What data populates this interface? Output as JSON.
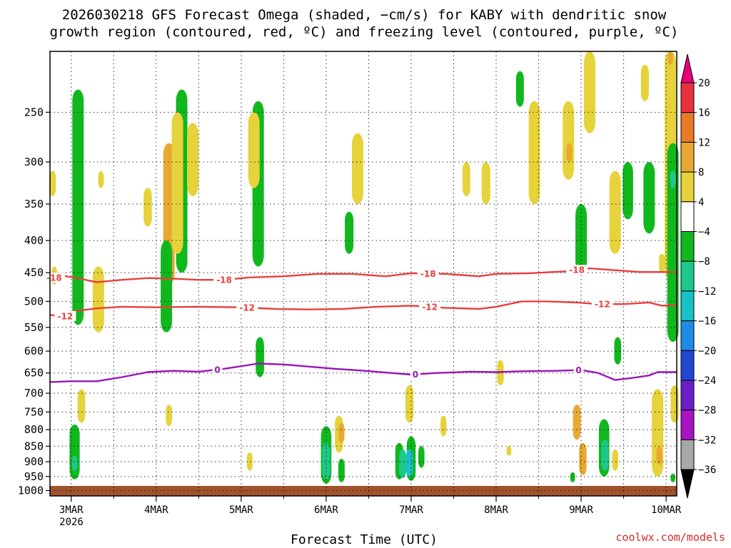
{
  "chart_data": {
    "type": "heatmap",
    "title_lines": [
      "2026030218 GFS Forecast Omega (shaded, −cm/s) for KABY with dendritic snow",
      "growth region (contoured, red, ºC) and freezing level (contoured, purple, ºC)"
    ],
    "xlabel": "Forecast Time (UTC)",
    "credit": "coolwx.com/models",
    "x_ticks": [
      "3MAR",
      "4MAR",
      "5MAR",
      "6MAR",
      "7MAR",
      "8MAR",
      "9MAR",
      "10MAR"
    ],
    "x_year_label": "2026",
    "x_range_days": [
      2.75,
      10.125
    ],
    "y_ticks": [
      250,
      300,
      350,
      400,
      450,
      500,
      550,
      600,
      650,
      700,
      750,
      800,
      850,
      900,
      950,
      1000
    ],
    "y_range_hpa": [
      200,
      1020
    ],
    "colorbar": {
      "labels": [
        "20",
        "16",
        "12",
        "8",
        "4",
        "−4",
        "−8",
        "−12",
        "−16",
        "−20",
        "−24",
        "−28",
        "−32",
        "−36"
      ],
      "colors": [
        "#e8007a",
        "#e8323c",
        "#e87a28",
        "#e8a832",
        "#e6d23a",
        "#ffffff",
        "#10b81e",
        "#1ec88a",
        "#18c0c8",
        "#1e8ce6",
        "#2046d2",
        "#6a1ec8",
        "#a614c4",
        "#a8a8a8",
        "#000000"
      ]
    },
    "contours": {
      "minus18": {
        "label": "-18",
        "color": "#e8403c",
        "label_days": [
          2.8,
          4.8,
          7.2,
          8.95
        ],
        "points": [
          [
            2.75,
            460
          ],
          [
            2.9,
            455
          ],
          [
            3.1,
            460
          ],
          [
            3.3,
            466
          ],
          [
            3.6,
            462
          ],
          [
            3.9,
            459
          ],
          [
            4.2,
            460
          ],
          [
            4.5,
            462
          ],
          [
            4.8,
            462
          ],
          [
            5.1,
            458
          ],
          [
            5.5,
            456
          ],
          [
            5.9,
            452
          ],
          [
            6.3,
            452
          ],
          [
            6.7,
            456
          ],
          [
            7.0,
            451
          ],
          [
            7.4,
            452
          ],
          [
            7.8,
            456
          ],
          [
            8.0,
            452
          ],
          [
            8.4,
            451
          ],
          [
            8.8,
            448
          ],
          [
            9.1,
            443
          ],
          [
            9.4,
            446
          ],
          [
            9.7,
            449
          ],
          [
            10.125,
            449
          ]
        ]
      },
      "minus12": {
        "label": "-12",
        "color": "#e8403c",
        "label_days": [
          2.93,
          5.07,
          7.22,
          9.25
        ],
        "points": [
          [
            2.75,
            525
          ],
          [
            2.9,
            530
          ],
          [
            3.05,
            518
          ],
          [
            3.3,
            513
          ],
          [
            3.6,
            510
          ],
          [
            4.0,
            511
          ],
          [
            4.5,
            510
          ],
          [
            5.0,
            511
          ],
          [
            5.4,
            514
          ],
          [
            5.8,
            515
          ],
          [
            6.2,
            514
          ],
          [
            6.6,
            510
          ],
          [
            7.0,
            508
          ],
          [
            7.4,
            512
          ],
          [
            7.8,
            514
          ],
          [
            8.0,
            510
          ],
          [
            8.3,
            500
          ],
          [
            8.6,
            500
          ],
          [
            8.95,
            502
          ],
          [
            9.2,
            505
          ],
          [
            9.5,
            505
          ],
          [
            9.8,
            502
          ],
          [
            9.95,
            508
          ],
          [
            10.05,
            507
          ],
          [
            10.125,
            508
          ]
        ]
      },
      "freezing": {
        "label": "0",
        "color": "#9a14b8",
        "label_days": [
          4.72,
          7.05,
          8.97
        ],
        "points": [
          [
            2.75,
            672
          ],
          [
            3.0,
            670
          ],
          [
            3.3,
            670
          ],
          [
            3.6,
            660
          ],
          [
            3.9,
            648
          ],
          [
            4.2,
            645
          ],
          [
            4.5,
            647
          ],
          [
            4.8,
            640
          ],
          [
            5.0,
            634
          ],
          [
            5.2,
            628
          ],
          [
            5.5,
            630
          ],
          [
            5.8,
            635
          ],
          [
            6.1,
            640
          ],
          [
            6.4,
            644
          ],
          [
            6.7,
            649
          ],
          [
            7.0,
            654
          ],
          [
            7.3,
            650
          ],
          [
            7.7,
            647
          ],
          [
            8.0,
            648
          ],
          [
            8.3,
            646
          ],
          [
            8.7,
            645
          ],
          [
            9.0,
            643
          ],
          [
            9.2,
            650
          ],
          [
            9.4,
            667
          ],
          [
            9.6,
            662
          ],
          [
            9.8,
            656
          ],
          [
            9.9,
            648
          ],
          [
            10.125,
            648
          ]
        ]
      }
    },
    "omega_features": [
      {
        "day": 2.78,
        "p1": 310,
        "p2": 340,
        "color": "#e6d23a"
      },
      {
        "day": 2.8,
        "p1": 440,
        "p2": 470,
        "color": "#e6d23a"
      },
      {
        "day": 3.08,
        "p1": 230,
        "p2": 545,
        "color": "#10b81e"
      },
      {
        "day": 3.04,
        "p1": 785,
        "p2": 960,
        "color": "#10b81e"
      },
      {
        "day": 3.04,
        "p1": 880,
        "p2": 930,
        "color": "#1ec88a"
      },
      {
        "day": 3.32,
        "p1": 440,
        "p2": 560,
        "color": "#e6d23a"
      },
      {
        "day": 3.12,
        "p1": 690,
        "p2": 780,
        "color": "#e6d23a"
      },
      {
        "day": 3.35,
        "p1": 310,
        "p2": 330,
        "color": "#e6d23a"
      },
      {
        "day": 3.9,
        "p1": 330,
        "p2": 380,
        "color": "#e6d23a"
      },
      {
        "day": 4.15,
        "p1": 280,
        "p2": 470,
        "color": "#e8a832"
      },
      {
        "day": 4.12,
        "p1": 400,
        "p2": 560,
        "color": "#10b81e"
      },
      {
        "day": 4.3,
        "p1": 230,
        "p2": 450,
        "color": "#10b81e"
      },
      {
        "day": 4.25,
        "p1": 250,
        "p2": 420,
        "color": "#e6d23a"
      },
      {
        "day": 4.43,
        "p1": 260,
        "p2": 340,
        "color": "#e6d23a"
      },
      {
        "day": 4.15,
        "p1": 730,
        "p2": 790,
        "color": "#e6d23a"
      },
      {
        "day": 5.2,
        "p1": 240,
        "p2": 440,
        "color": "#10b81e"
      },
      {
        "day": 5.15,
        "p1": 250,
        "p2": 330,
        "color": "#e6d23a"
      },
      {
        "day": 5.22,
        "p1": 570,
        "p2": 660,
        "color": "#10b81e"
      },
      {
        "day": 5.1,
        "p1": 870,
        "p2": 930,
        "color": "#e6d23a"
      },
      {
        "day": 6.0,
        "p1": 790,
        "p2": 975,
        "color": "#10b81e"
      },
      {
        "day": 6.0,
        "p1": 840,
        "p2": 960,
        "color": "#1ec88a"
      },
      {
        "day": 6.15,
        "p1": 760,
        "p2": 870,
        "color": "#e6d23a"
      },
      {
        "day": 6.18,
        "p1": 780,
        "p2": 840,
        "color": "#e8a832"
      },
      {
        "day": 6.37,
        "p1": 270,
        "p2": 350,
        "color": "#e6d23a"
      },
      {
        "day": 6.27,
        "p1": 360,
        "p2": 420,
        "color": "#10b81e"
      },
      {
        "day": 6.18,
        "p1": 890,
        "p2": 970,
        "color": "#10b81e"
      },
      {
        "day": 6.86,
        "p1": 840,
        "p2": 960,
        "color": "#10b81e"
      },
      {
        "day": 6.9,
        "p1": 860,
        "p2": 955,
        "color": "#1ec88a"
      },
      {
        "day": 7.0,
        "p1": 820,
        "p2": 965,
        "color": "#10b81e"
      },
      {
        "day": 6.98,
        "p1": 860,
        "p2": 950,
        "color": "#18c0c8"
      },
      {
        "day": 6.98,
        "p1": 680,
        "p2": 780,
        "color": "#e6d23a"
      },
      {
        "day": 7.12,
        "p1": 850,
        "p2": 920,
        "color": "#10b81e"
      },
      {
        "day": 7.38,
        "p1": 760,
        "p2": 820,
        "color": "#e6d23a"
      },
      {
        "day": 7.65,
        "p1": 300,
        "p2": 340,
        "color": "#e6d23a"
      },
      {
        "day": 7.88,
        "p1": 300,
        "p2": 350,
        "color": "#e6d23a"
      },
      {
        "day": 8.05,
        "p1": 620,
        "p2": 680,
        "color": "#e6d23a"
      },
      {
        "day": 8.15,
        "p1": 850,
        "p2": 880,
        "color": "#e6d23a"
      },
      {
        "day": 8.28,
        "p1": 215,
        "p2": 245,
        "color": "#10b81e"
      },
      {
        "day": 8.45,
        "p1": 240,
        "p2": 350,
        "color": "#e6d23a"
      },
      {
        "day": 8.85,
        "p1": 240,
        "p2": 320,
        "color": "#e6d23a"
      },
      {
        "day": 8.86,
        "p1": 280,
        "p2": 300,
        "color": "#e8a832"
      },
      {
        "day": 8.95,
        "p1": 730,
        "p2": 830,
        "color": "#e8a832"
      },
      {
        "day": 9.0,
        "p1": 350,
        "p2": 450,
        "color": "#10b81e"
      },
      {
        "day": 9.02,
        "p1": 840,
        "p2": 945,
        "color": "#e8a832"
      },
      {
        "day": 8.9,
        "p1": 935,
        "p2": 970,
        "color": "#10b81e"
      },
      {
        "day": 9.1,
        "p1": 200,
        "p2": 270,
        "color": "#e6d23a"
      },
      {
        "day": 9.27,
        "p1": 770,
        "p2": 950,
        "color": "#10b81e"
      },
      {
        "day": 9.28,
        "p1": 830,
        "p2": 930,
        "color": "#1ec88a"
      },
      {
        "day": 9.4,
        "p1": 310,
        "p2": 420,
        "color": "#e6d23a"
      },
      {
        "day": 9.4,
        "p1": 860,
        "p2": 930,
        "color": "#e6d23a"
      },
      {
        "day": 9.55,
        "p1": 300,
        "p2": 370,
        "color": "#10b81e"
      },
      {
        "day": 9.43,
        "p1": 570,
        "p2": 630,
        "color": "#10b81e"
      },
      {
        "day": 9.8,
        "p1": 300,
        "p2": 390,
        "color": "#10b81e"
      },
      {
        "day": 9.75,
        "p1": 210,
        "p2": 240,
        "color": "#e6d23a"
      },
      {
        "day": 9.9,
        "p1": 690,
        "p2": 950,
        "color": "#e6d23a"
      },
      {
        "day": 9.92,
        "p1": 850,
        "p2": 910,
        "color": "#e8a832"
      },
      {
        "day": 9.95,
        "p1": 420,
        "p2": 450,
        "color": "#e6d23a"
      },
      {
        "day": 10.05,
        "p1": 200,
        "p2": 460,
        "color": "#e6d23a"
      },
      {
        "day": 10.05,
        "p1": 200,
        "p2": 210,
        "color": "#e8a832"
      },
      {
        "day": 10.08,
        "p1": 280,
        "p2": 580,
        "color": "#10b81e"
      },
      {
        "day": 10.08,
        "p1": 310,
        "p2": 330,
        "color": "#1ec88a"
      },
      {
        "day": 10.1,
        "p1": 680,
        "p2": 780,
        "color": "#e6d23a"
      },
      {
        "day": 10.08,
        "p1": 940,
        "p2": 970,
        "color": "#10b81e"
      }
    ],
    "terrain_color": "#a0522d"
  }
}
